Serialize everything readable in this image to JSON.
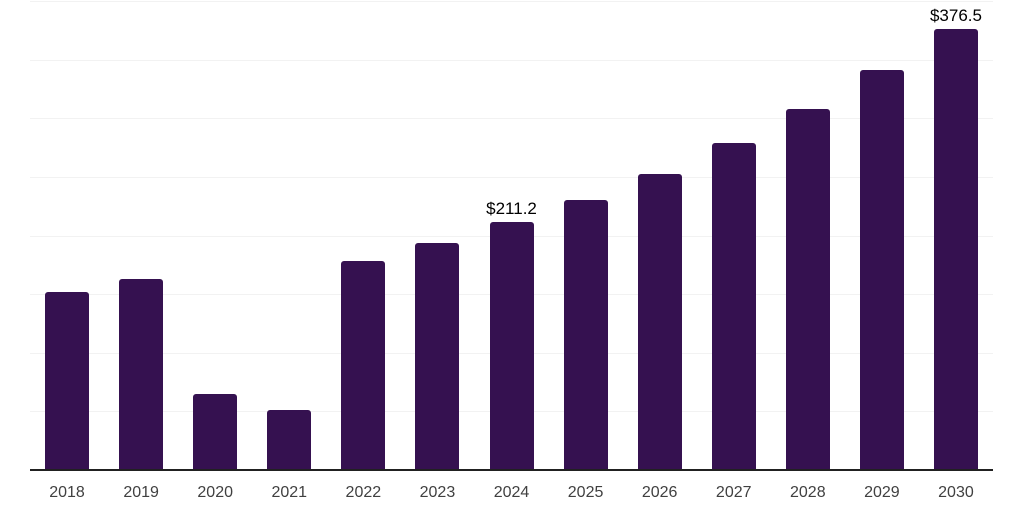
{
  "chart": {
    "background_color": "#ffffff",
    "bar_color": "#351150",
    "axis_line_color": "#212121",
    "gridline_color": "#f2f2f2",
    "tick_label_color": "#404040",
    "data_label_color": "#000000"
  },
  "chart_data": {
    "type": "bar",
    "title": "",
    "xlabel": "",
    "ylabel": "",
    "categories": [
      "2018",
      "2019",
      "2020",
      "2021",
      "2022",
      "2023",
      "2024",
      "2025",
      "2026",
      "2027",
      "2028",
      "2029",
      "2030"
    ],
    "values": [
      152,
      163,
      65,
      51,
      178.5,
      194,
      211.2,
      230.5,
      252.5,
      278.5,
      307.5,
      341,
      376.5
    ],
    "data_labels": [
      "",
      "",
      "",
      "",
      "",
      "",
      "$211.2",
      "",
      "",
      "",
      "",
      "",
      "$376.5"
    ],
    "ylim": [
      0,
      400
    ],
    "gridline_values": [
      50,
      100,
      150,
      200,
      250,
      300,
      350,
      400
    ],
    "grid": "horizontal",
    "legend": "none",
    "y_axis_labels_visible": false
  }
}
